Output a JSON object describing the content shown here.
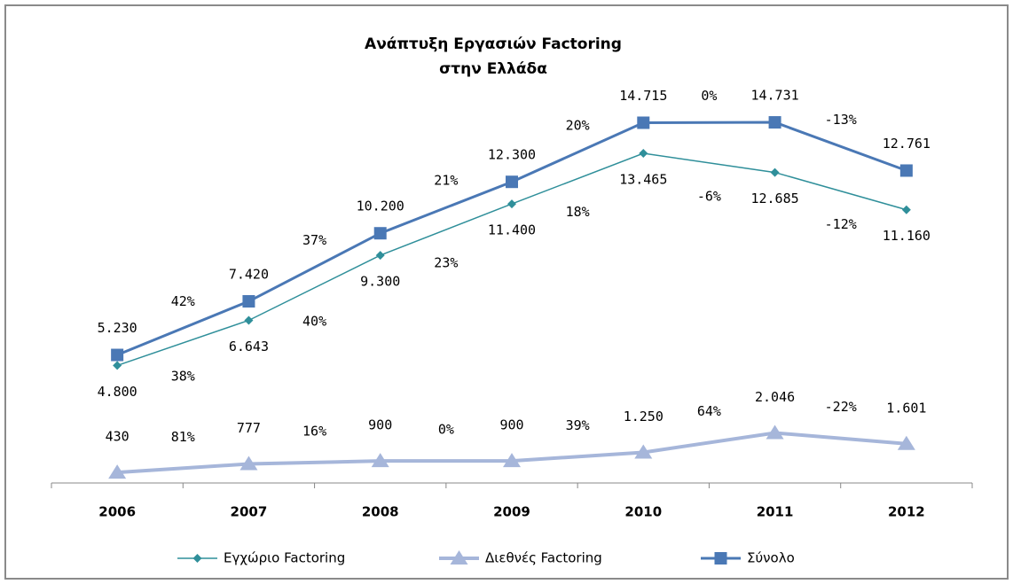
{
  "chart_data": {
    "type": "line",
    "title": [
      "Ανάπτυξη Εργασιών Factoring",
      "στην Ελλάδα"
    ],
    "categories": [
      "2006",
      "2007",
      "2008",
      "2009",
      "2010",
      "2011",
      "2012"
    ],
    "ylim": [
      0,
      16000
    ],
    "legend": "bottom",
    "series": [
      {
        "name": "Εγχώριο Factoring",
        "color": "#2f8f9a",
        "marker": "diamond",
        "label_side": "below",
        "values": [
          4800,
          6643,
          9300,
          11400,
          13465,
          12685,
          11160
        ],
        "value_labels": [
          "4.800",
          "6.643",
          "9.300",
          "11.400",
          "13.465",
          "12.685",
          "11.160"
        ],
        "change_labels": [
          "38%",
          "40%",
          "23%",
          "18%",
          "-6%",
          "-12%"
        ]
      },
      {
        "name": "Διεθνές Factoring",
        "color": "#a6b6da",
        "marker": "triangle",
        "label_side": "above",
        "values": [
          430,
          777,
          900,
          900,
          1250,
          2046,
          1601
        ],
        "value_labels": [
          "430",
          "777",
          "900",
          "900",
          "1.250",
          "2.046",
          "1.601"
        ],
        "change_labels": [
          "81%",
          "16%",
          "0%",
          "39%",
          "64%",
          "-22%"
        ]
      },
      {
        "name": "Σύνολο",
        "color": "#4a78b5",
        "marker": "square",
        "label_side": "above",
        "values": [
          5230,
          7420,
          10200,
          12300,
          14715,
          14731,
          12761
        ],
        "value_labels": [
          "5.230",
          "7.420",
          "10.200",
          "12.300",
          "14.715",
          "14.731",
          "12.761"
        ],
        "change_labels": [
          "42%",
          "37%",
          "21%",
          "20%",
          "0%",
          "-13%"
        ]
      }
    ]
  }
}
